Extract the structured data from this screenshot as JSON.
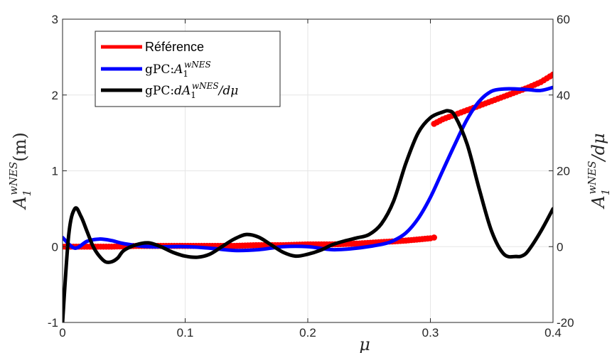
{
  "chart_data": {
    "type": "line",
    "title": "",
    "xlabel": "μ",
    "ylabel_left": "A1^wNES(m)",
    "ylabel_right": "A1^wNES/dμ",
    "xlim": [
      0,
      0.4
    ],
    "ylim_left": [
      -1,
      3
    ],
    "ylim_right": [
      -20,
      60
    ],
    "xticks": [
      0,
      0.1,
      0.2,
      0.3,
      0.4
    ],
    "xtick_labels": [
      "0",
      "0.1",
      "0.2",
      "0.3",
      "0.4"
    ],
    "yticks_left": [
      -1,
      0,
      1,
      2,
      3
    ],
    "ytick_labels_left": [
      "-1",
      "0",
      "1",
      "2",
      "3"
    ],
    "yticks_right": [
      -20,
      0,
      20,
      40,
      60
    ],
    "ytick_labels_right": [
      "-20",
      "0",
      "20",
      "40",
      "60"
    ],
    "grid": true,
    "legend_position": "top-left",
    "series": [
      {
        "name": "Référence",
        "axis": "left",
        "color": "#ff0000",
        "style": "dots",
        "segments": [
          {
            "x": [
              0,
              0.02,
              0.04,
              0.06,
              0.08,
              0.1,
              0.12,
              0.14,
              0.16,
              0.18,
              0.2,
              0.22,
              0.24,
              0.26,
              0.28,
              0.3,
              0.303
            ],
            "y": [
              0,
              0,
              0,
              0.01,
              0.01,
              0.01,
              0.01,
              0.01,
              0.02,
              0.02,
              0.03,
              0.03,
              0.04,
              0.06,
              0.08,
              0.11,
              0.12
            ]
          },
          {
            "x": [
              0.303,
              0.31,
              0.32,
              0.33,
              0.34,
              0.35,
              0.36,
              0.37,
              0.38,
              0.39,
              0.4
            ],
            "y": [
              1.62,
              1.68,
              1.74,
              1.8,
              1.86,
              1.92,
              1.98,
              2.04,
              2.1,
              2.17,
              2.27
            ]
          }
        ]
      },
      {
        "name": "gPC:A1^wNES",
        "axis": "left",
        "color": "#0000ff",
        "style": "line",
        "x": [
          0,
          0.01,
          0.02,
          0.03,
          0.04,
          0.05,
          0.07,
          0.1,
          0.12,
          0.14,
          0.16,
          0.18,
          0.2,
          0.22,
          0.24,
          0.26,
          0.27,
          0.28,
          0.29,
          0.3,
          0.31,
          0.32,
          0.33,
          0.34,
          0.35,
          0.36,
          0.37,
          0.38,
          0.39,
          0.4
        ],
        "y": [
          0.12,
          -0.02,
          0.07,
          0.1,
          0.08,
          0.04,
          0.0,
          0.0,
          -0.02,
          -0.05,
          -0.04,
          0.0,
          0.0,
          -0.04,
          -0.02,
          0.03,
          0.08,
          0.18,
          0.37,
          0.65,
          1.0,
          1.35,
          1.68,
          1.92,
          2.05,
          2.08,
          2.08,
          2.07,
          2.06,
          2.1
        ]
      },
      {
        "name": "gPC:dA1^wNES/dμ",
        "axis": "right",
        "color": "#000000",
        "style": "line",
        "x": [
          0,
          0.005,
          0.01,
          0.015,
          0.02,
          0.025,
          0.03,
          0.035,
          0.04,
          0.045,
          0.05,
          0.06,
          0.07,
          0.08,
          0.09,
          0.1,
          0.11,
          0.12,
          0.13,
          0.14,
          0.15,
          0.16,
          0.17,
          0.18,
          0.19,
          0.2,
          0.21,
          0.22,
          0.23,
          0.24,
          0.25,
          0.26,
          0.27,
          0.28,
          0.29,
          0.3,
          0.31,
          0.315,
          0.32,
          0.33,
          0.34,
          0.35,
          0.36,
          0.37,
          0.375,
          0.38,
          0.39,
          0.4
        ],
        "y": [
          -20,
          3,
          10,
          8,
          4,
          0,
          -2.5,
          -4,
          -4,
          -3,
          -1,
          0.5,
          1,
          0,
          -1.5,
          -2.5,
          -2.8,
          -2,
          0,
          2,
          3.2,
          2.5,
          0.5,
          -1.5,
          -2.5,
          -2,
          -1,
          0.5,
          1.5,
          2.3,
          3.2,
          6,
          12,
          22,
          30,
          34,
          35.5,
          35.8,
          34.5,
          27,
          15,
          4,
          -2,
          -2.6,
          -2.4,
          -1,
          4,
          10
        ]
      }
    ]
  },
  "legend": {
    "items": [
      {
        "label": "Référence",
        "color": "#ff0000"
      },
      {
        "label_pre": "gPC:",
        "label_main": "A",
        "label_sub": "1",
        "label_sup": "wNES",
        "color": "#0000ff"
      },
      {
        "label_pre": "gPC:",
        "label_d": "dA",
        "label_sub": "1",
        "label_sup": "wNES",
        "label_post": "/dμ",
        "color": "#000000"
      }
    ]
  }
}
